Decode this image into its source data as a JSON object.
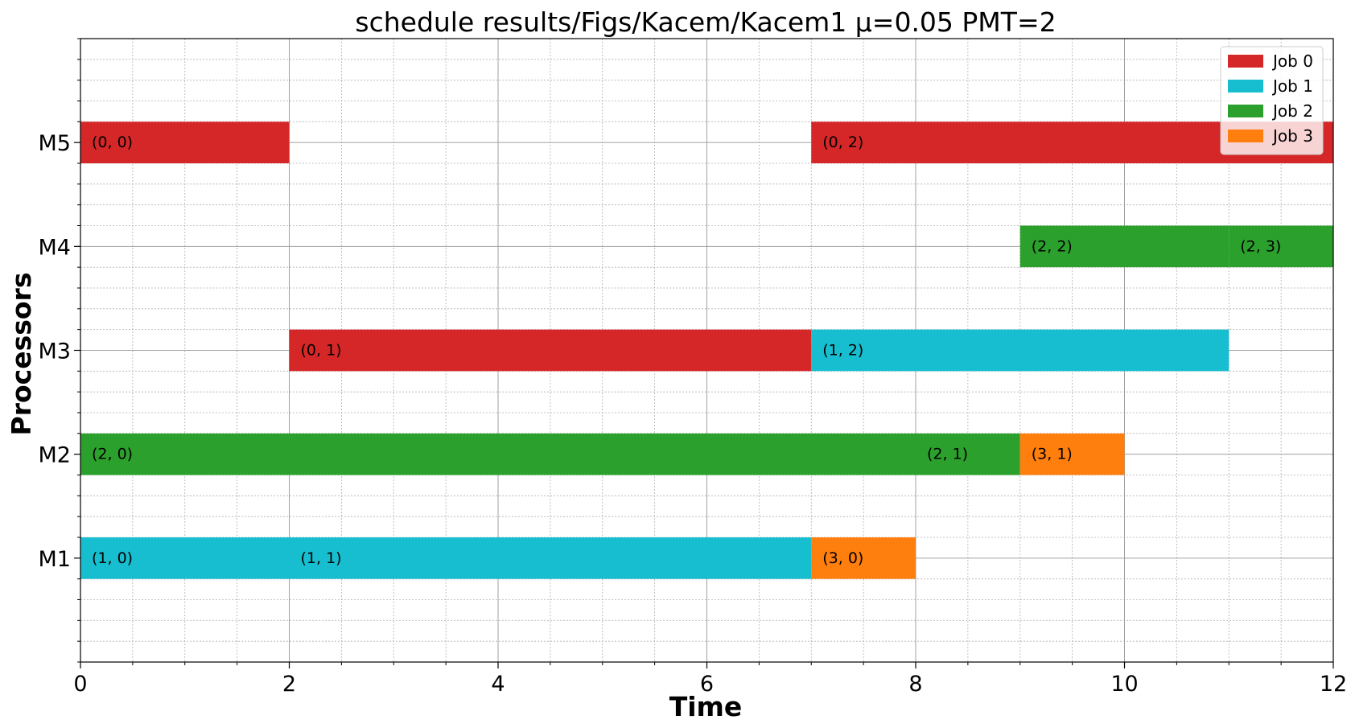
{
  "chart_data": {
    "type": "gantt",
    "title": "schedule results/Figs/Kacem/Kacem1 μ=0.05 PMT=2",
    "xlabel": "Time",
    "ylabel": "Processors",
    "xlim": [
      0,
      12
    ],
    "xticks": [
      "0",
      "2",
      "4",
      "6",
      "8",
      "10",
      "12"
    ],
    "processors": [
      "M1",
      "M2",
      "M3",
      "M4",
      "M5"
    ],
    "grid": "major and minor",
    "legend_position": "top-right",
    "jobs": [
      {
        "name": "Job 0",
        "color": "#d62728"
      },
      {
        "name": "Job 1",
        "color": "#17becf"
      },
      {
        "name": "Job 2",
        "color": "#2ca02c"
      },
      {
        "name": "Job 3",
        "color": "#ff7f0e"
      }
    ],
    "tasks": [
      {
        "label": "(0, 0)",
        "job": 0,
        "processor": "M5",
        "start": 0,
        "end": 2
      },
      {
        "label": "(0, 2)",
        "job": 0,
        "processor": "M5",
        "start": 7,
        "end": 12
      },
      {
        "label": "(2, 2)",
        "job": 2,
        "processor": "M4",
        "start": 9,
        "end": 11
      },
      {
        "label": "(2, 3)",
        "job": 2,
        "processor": "M4",
        "start": 11,
        "end": 12
      },
      {
        "label": "(0, 1)",
        "job": 0,
        "processor": "M3",
        "start": 2,
        "end": 7
      },
      {
        "label": "(1, 2)",
        "job": 1,
        "processor": "M3",
        "start": 7,
        "end": 11
      },
      {
        "label": "(2, 0)",
        "job": 2,
        "processor": "M2",
        "start": 0,
        "end": 8
      },
      {
        "label": "(2, 1)",
        "job": 2,
        "processor": "M2",
        "start": 8,
        "end": 9
      },
      {
        "label": "(3, 1)",
        "job": 3,
        "processor": "M2",
        "start": 9,
        "end": 10
      },
      {
        "label": "(1, 0)",
        "job": 1,
        "processor": "M1",
        "start": 0,
        "end": 2
      },
      {
        "label": "(1, 1)",
        "job": 1,
        "processor": "M1",
        "start": 2,
        "end": 7
      },
      {
        "label": "(3, 0)",
        "job": 3,
        "processor": "M1",
        "start": 7,
        "end": 8
      }
    ]
  }
}
